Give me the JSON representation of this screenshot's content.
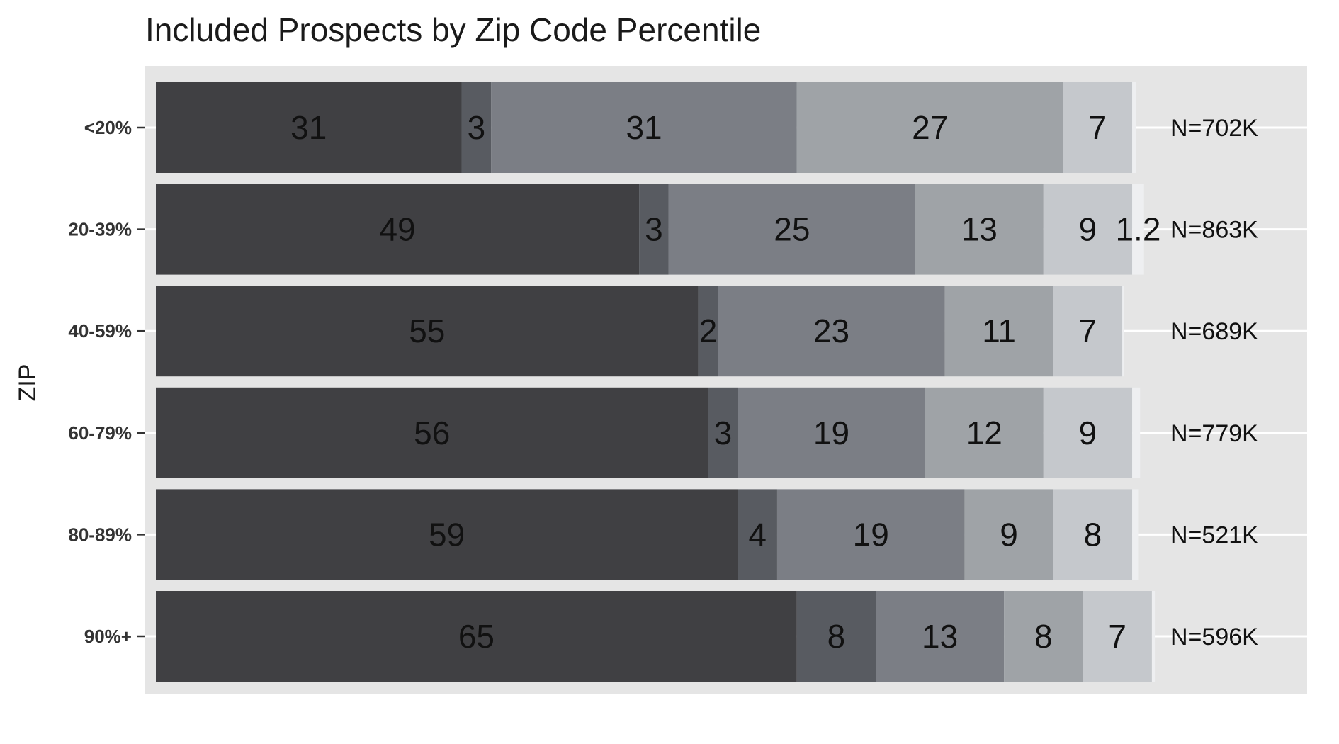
{
  "chart_data": {
    "type": "bar",
    "orientation": "horizontal",
    "stacked": true,
    "title": "Included Prospects by Zip Code Percentile",
    "ylabel": "ZIP",
    "xlabel": "",
    "categories": [
      "<20%",
      "20-39%",
      "40-59%",
      "60-79%",
      "80-89%",
      "90%+"
    ],
    "series": [
      {
        "values": [
          31,
          49,
          55,
          56,
          59,
          65
        ],
        "color": "#404043"
      },
      {
        "values": [
          3,
          3,
          2,
          3,
          4,
          8
        ],
        "color": "#585b61"
      },
      {
        "values": [
          31,
          25,
          23,
          19,
          19,
          13
        ],
        "color": "#7b7e85"
      },
      {
        "values": [
          27,
          13,
          11,
          12,
          9,
          8
        ],
        "color": "#9fa3a7"
      },
      {
        "values": [
          7,
          9,
          7,
          9,
          8,
          7
        ],
        "color": "#c5c8cc"
      },
      {
        "values": [
          0.4,
          1.2,
          0.2,
          0.8,
          0.6,
          0.3
        ],
        "color": "#eeeff1"
      }
    ],
    "xlim": [
      0,
      100
    ],
    "n_labels": [
      "N=702K",
      "N=863K",
      "N=689K",
      "N=779K",
      "N=521K",
      "N=596K"
    ],
    "grid": true,
    "panel_background": "#e5e5e5",
    "legend": "none"
  }
}
